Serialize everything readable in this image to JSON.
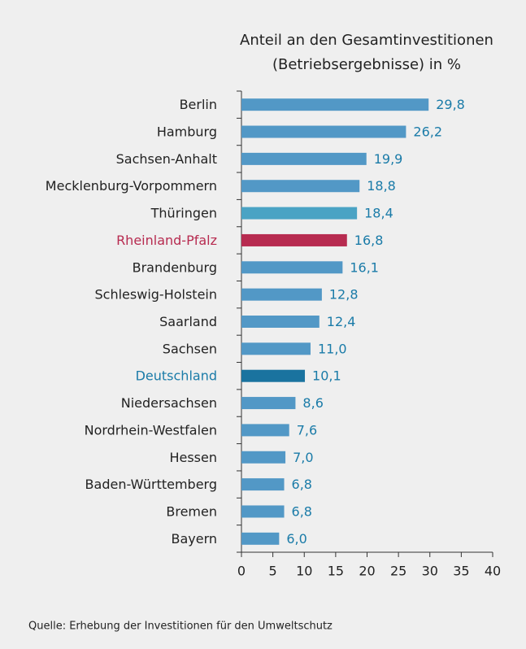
{
  "chart_data": {
    "type": "bar",
    "orientation": "horizontal",
    "title": [
      "Anteil an den Gesamtinvestitionen",
      "(Betriebsergebnisse) in %"
    ],
    "categories": [
      "Berlin",
      "Hamburg",
      "Sachsen-Anhalt",
      "Mecklenburg-Vorpommern",
      "Thüringen",
      "Rheinland-Pfalz",
      "Brandenburg",
      "Schleswig-Holstein",
      "Saarland",
      "Sachsen",
      "Deutschland",
      "Niedersachsen",
      "Nordrhein-Westfalen",
      "Hessen",
      "Baden-Württemberg",
      "Bremen",
      "Bayern"
    ],
    "values": [
      29.8,
      26.2,
      19.9,
      18.8,
      18.4,
      16.8,
      16.1,
      12.8,
      12.4,
      11.0,
      10.1,
      8.6,
      7.6,
      7.0,
      6.8,
      6.8,
      6.0
    ],
    "value_labels": [
      "29,8",
      "26,2",
      "19,9",
      "18,8",
      "18,4",
      "16,8",
      "16,1",
      "12,8",
      "12,4",
      "11,0",
      "10,1",
      "8,6",
      "7,6",
      "7,0",
      "6,8",
      "6,8",
      "6,0"
    ],
    "colors": [
      "#5298c6",
      "#5298c6",
      "#5298c6",
      "#5298c6",
      "#4aa3c4",
      "#b72b50",
      "#5298c6",
      "#5298c6",
      "#5298c6",
      "#5298c6",
      "#1a739f",
      "#5298c6",
      "#5298c6",
      "#5298c6",
      "#5298c6",
      "#5298c6",
      "#5298c6"
    ],
    "label_colors": [
      "#222222",
      "#222222",
      "#222222",
      "#222222",
      "#222222",
      "#b72b50",
      "#222222",
      "#222222",
      "#222222",
      "#222222",
      "#1a7ba8",
      "#222222",
      "#222222",
      "#222222",
      "#222222",
      "#222222",
      "#222222"
    ],
    "value_label_color": "#1a7ba8",
    "xlim": [
      0,
      40
    ],
    "xticks": [
      0,
      5,
      10,
      15,
      20,
      25,
      30,
      35,
      40
    ],
    "source": "Quelle: Erhebung der Investitionen für den Umweltschutz"
  }
}
